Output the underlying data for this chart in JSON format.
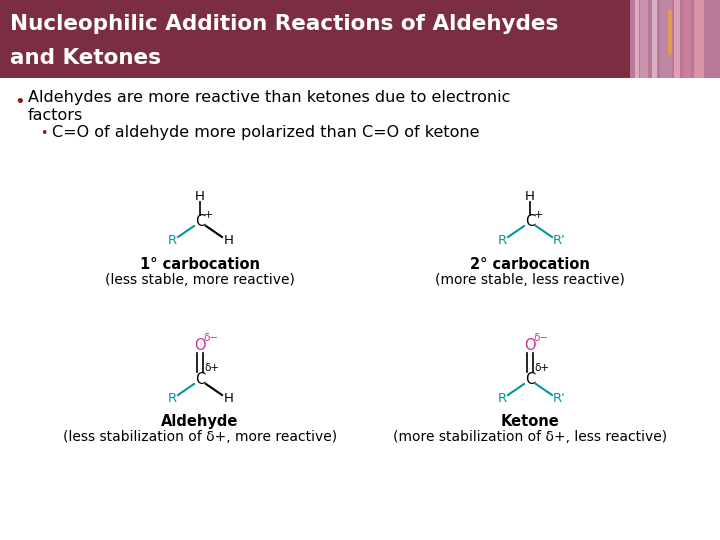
{
  "title_line1": "Nucleophilic Addition Reactions of Aldehydes",
  "title_line2": "and Ketones",
  "title_bg_color": "#7B2D42",
  "title_text_color": "#FFFFFF",
  "body_bg_color": "#FFFFFF",
  "bullet_color": "#8B1A1A",
  "text_color": "#000000",
  "cyan_color": "#009999",
  "pink_color": "#CC3399",
  "label1_title": "1° carbocation",
  "label1_sub": "(less stable, more reactive)",
  "label2_title": "2° carbocation",
  "label2_sub": "(more stable, less reactive)",
  "label3_title": "Aldehyde",
  "label3_sub": "(less stabilization of δ+, more reactive)",
  "label4_title": "Ketone",
  "label4_sub": "(more stabilization of δ+, less reactive)",
  "flower_colors": [
    "#C8A0B8",
    "#D4A0C0",
    "#E8C0D8",
    "#F0A060",
    "#E09050"
  ]
}
